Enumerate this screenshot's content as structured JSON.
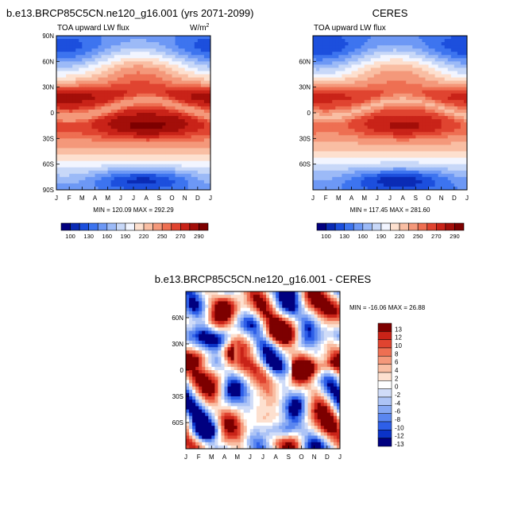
{
  "colors": {
    "abs_scale": [
      "#02007f",
      "#0a2bb5",
      "#1c4fdd",
      "#3d74ef",
      "#6d98f5",
      "#9cbaf7",
      "#c8d8f8",
      "#f2f5ff",
      "#fde0cf",
      "#f9bea3",
      "#f4987a",
      "#ee6f52",
      "#e04430",
      "#c92318",
      "#a30e09",
      "#7d0000"
    ],
    "diff_scale": [
      "#000080",
      "#0b33c8",
      "#2e5fe8",
      "#5a86f0",
      "#86a8f4",
      "#adc4f6",
      "#d0dcf8",
      "#ffffff",
      "#fde0cf",
      "#f9bea3",
      "#f4987a",
      "#ee6f52",
      "#e04430",
      "#c92318",
      "#7d0000"
    ]
  },
  "chart_data": [
    {
      "id": "model",
      "type": "heatmap",
      "title": "b.e13.BRCP85C5CN.ne120_g16.001 (yrs 2071-2099)",
      "subtitle_left": "TOA upward LW flux",
      "units_base": "W/m",
      "units_exp": "2",
      "x_ticks": [
        "J",
        "F",
        "M",
        "A",
        "M",
        "J",
        "J",
        "A",
        "S",
        "O",
        "N",
        "D",
        "J"
      ],
      "y_ticks": [
        "90N",
        "60N",
        "30N",
        "0",
        "30S",
        "60S",
        "90S"
      ],
      "y_range": [
        -90,
        90
      ],
      "stats": "MIN = 120.09 MAX = 292.29",
      "min": 120.09,
      "max": 292.29,
      "colorbar_labels": [
        "100",
        "130",
        "160",
        "190",
        "220",
        "250",
        "270",
        "290"
      ]
    },
    {
      "id": "ceres",
      "type": "heatmap",
      "title": "CERES",
      "subtitle_left": "TOA upward LW flux",
      "x_ticks": [
        "J",
        "F",
        "M",
        "A",
        "M",
        "J",
        "J",
        "A",
        "S",
        "O",
        "N",
        "D",
        "J"
      ],
      "y_ticks": [
        "60N",
        "30N",
        "0",
        "30S",
        "60S"
      ],
      "y_range": [
        -90,
        90
      ],
      "stats": "MIN = 117.45 MAX = 281.60",
      "min": 117.45,
      "max": 281.6,
      "colorbar_labels": [
        "100",
        "130",
        "160",
        "190",
        "220",
        "250",
        "270",
        "290"
      ]
    },
    {
      "id": "diff",
      "type": "heatmap",
      "title": "b.e13.BRCP85C5CN.ne120_g16.001 - CERES",
      "x_ticks": [
        "J",
        "F",
        "M",
        "A",
        "M",
        "J",
        "J",
        "A",
        "S",
        "O",
        "N",
        "D",
        "J"
      ],
      "y_ticks": [
        "60N",
        "30N",
        "0",
        "30S",
        "60S"
      ],
      "y_range": [
        -90,
        90
      ],
      "stats": "MIN = -16.06 MAX =  26.88",
      "min": -16.06,
      "max": 26.88,
      "colorbar_labels": [
        "13",
        "12",
        "10",
        "8",
        "6",
        "4",
        "2",
        "0",
        "-2",
        "-4",
        "-6",
        "-8",
        "-10",
        "-12",
        "-13"
      ]
    }
  ]
}
